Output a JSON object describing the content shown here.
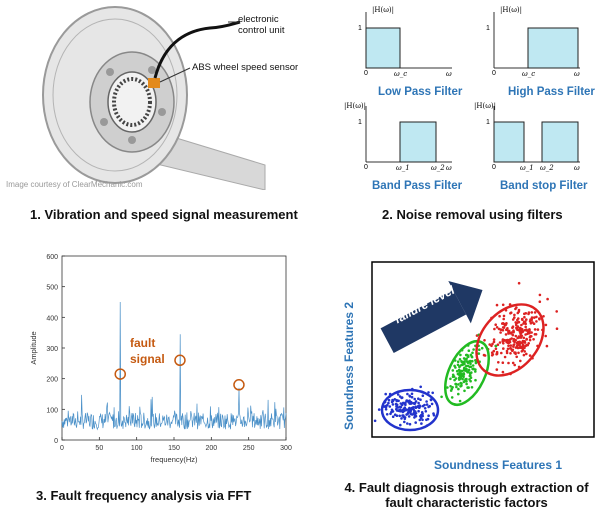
{
  "panel1": {
    "label_ecu": "electronic control unit",
    "label_abs": "ABS wheel speed sensor",
    "credit": "Image courtesy of ClearMechanic.com",
    "caption": "1. Vibration and speed signal measurement"
  },
  "panel2": {
    "ylabel": "|H(ω)|",
    "xlabel": "ω",
    "one": "1",
    "zero": "0",
    "omega_c": "ω_c",
    "omega_1": "ω_1",
    "omega_2": "ω_2",
    "filters": [
      {
        "name": "Low Pass Filter"
      },
      {
        "name": "High Pass Filter"
      },
      {
        "name": "Band Pass Filter"
      },
      {
        "name": "Band stop Filter"
      }
    ],
    "fill_color": "#bfe8f2",
    "caption": "2. Noise removal using filters"
  },
  "panel3": {
    "annotation_line1": "fault",
    "annotation_line2": "signal",
    "annotation_color": "#c55a11",
    "series_color": "#4a90c8",
    "caption": "3. Fault frequency analysis via FFT",
    "chart_data": {
      "type": "line",
      "xlabel": "frequency(Hz)",
      "ylabel": "Amplitude",
      "xlim": [
        0,
        300
      ],
      "ylim": [
        0,
        600
      ],
      "xticks": [
        0,
        50,
        100,
        150,
        200,
        250,
        300
      ],
      "yticks": [
        0,
        100,
        200,
        300,
        400,
        500,
        600
      ],
      "peaks": [
        {
          "x": 78,
          "y": 450
        },
        {
          "x": 158,
          "y": 345
        },
        {
          "x": 237,
          "y": 170
        }
      ],
      "marked_peaks": [
        {
          "x": 78,
          "y": 215
        },
        {
          "x": 158,
          "y": 260
        },
        {
          "x": 237,
          "y": 180
        }
      ]
    }
  },
  "panel4": {
    "xlabel": "Soundness Features 1",
    "ylabel": "Soundness Features 2",
    "arrow_label": "failure level",
    "caption_line1": "4. Fault diagnosis through extraction of",
    "caption_line2": "fault characteristic factors",
    "colors": {
      "blue": "#2233cc",
      "green": "#22bb22",
      "red": "#dd2222",
      "arrow": "#1f3864",
      "axis_label": "#2e75b6"
    }
  }
}
